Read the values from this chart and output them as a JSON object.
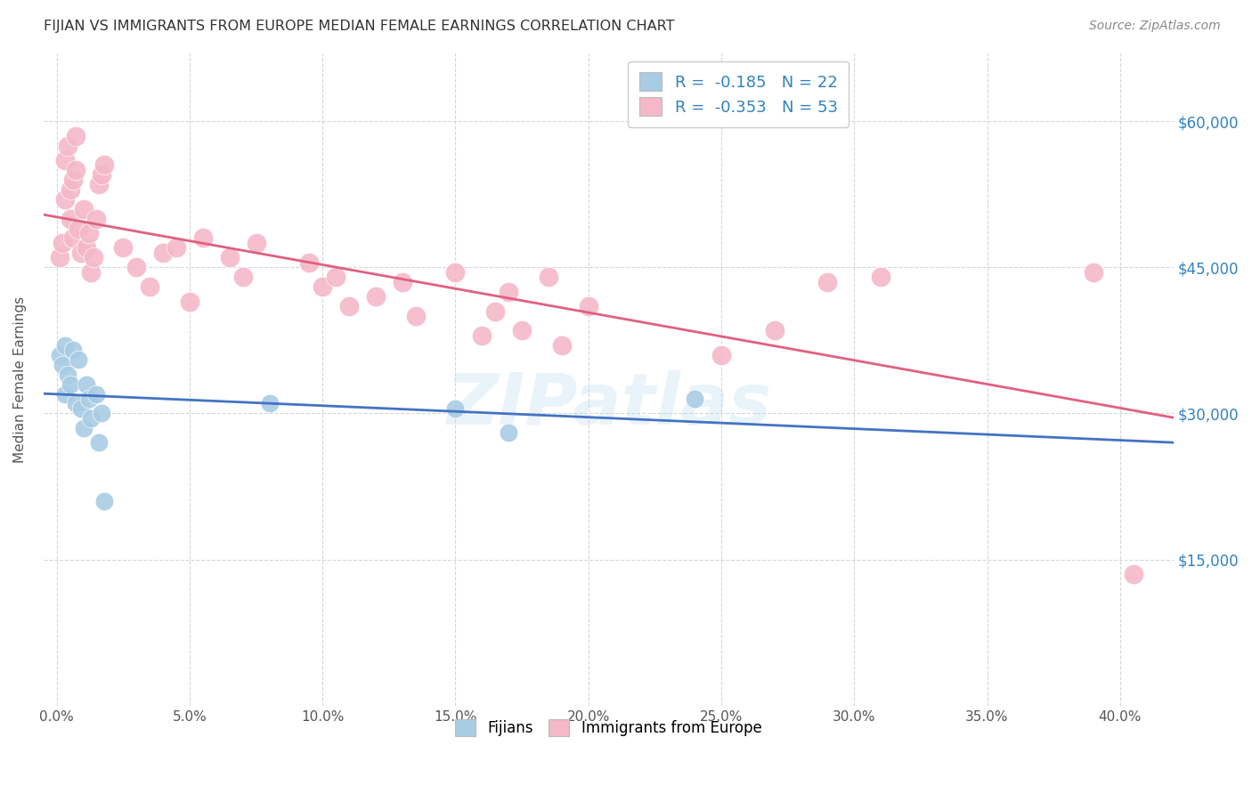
{
  "title": "FIJIAN VS IMMIGRANTS FROM EUROPE MEDIAN FEMALE EARNINGS CORRELATION CHART",
  "source": "Source: ZipAtlas.com",
  "xlabel_ticks": [
    "0.0%",
    "5.0%",
    "10.0%",
    "15.0%",
    "20.0%",
    "25.0%",
    "30.0%",
    "35.0%",
    "40.0%"
  ],
  "xlabel_vals": [
    0.0,
    0.05,
    0.1,
    0.15,
    0.2,
    0.25,
    0.3,
    0.35,
    0.4
  ],
  "ylabel": "Median Female Earnings",
  "ylabel_ticks": [
    "$60,000",
    "$45,000",
    "$30,000",
    "$15,000"
  ],
  "ylabel_vals": [
    60000,
    45000,
    30000,
    15000
  ],
  "ylim": [
    0,
    67000
  ],
  "xlim": [
    -0.005,
    0.42
  ],
  "watermark": "ZIPatlas",
  "legend_R_blue": "-0.185",
  "legend_N_blue": "22",
  "legend_R_pink": "-0.353",
  "legend_N_pink": "53",
  "blue_color": "#a8cce4",
  "pink_color": "#f4b8c8",
  "blue_line_color": "#4472c4",
  "pink_line_color": "#e06080",
  "fijian_x": [
    0.001,
    0.002,
    0.003,
    0.003,
    0.004,
    0.005,
    0.006,
    0.007,
    0.008,
    0.009,
    0.01,
    0.011,
    0.012,
    0.013,
    0.015,
    0.016,
    0.017,
    0.018,
    0.08,
    0.15,
    0.17,
    0.24
  ],
  "fijian_y": [
    36000,
    35000,
    37000,
    32000,
    34000,
    33000,
    36500,
    31000,
    35500,
    30500,
    28500,
    33000,
    31500,
    29500,
    32000,
    27000,
    30000,
    21000,
    31000,
    30500,
    28000,
    31500
  ],
  "europe_x": [
    0.001,
    0.002,
    0.003,
    0.003,
    0.004,
    0.005,
    0.005,
    0.006,
    0.006,
    0.007,
    0.007,
    0.008,
    0.009,
    0.01,
    0.011,
    0.012,
    0.013,
    0.014,
    0.015,
    0.016,
    0.017,
    0.018,
    0.025,
    0.03,
    0.035,
    0.04,
    0.045,
    0.05,
    0.055,
    0.065,
    0.07,
    0.075,
    0.095,
    0.1,
    0.105,
    0.11,
    0.12,
    0.13,
    0.135,
    0.15,
    0.16,
    0.165,
    0.17,
    0.175,
    0.185,
    0.19,
    0.2,
    0.25,
    0.27,
    0.29,
    0.31,
    0.39,
    0.405
  ],
  "europe_y": [
    46000,
    47500,
    56000,
    52000,
    57500,
    50000,
    53000,
    48000,
    54000,
    55000,
    58500,
    49000,
    46500,
    51000,
    47000,
    48500,
    44500,
    46000,
    50000,
    53500,
    54500,
    55500,
    47000,
    45000,
    43000,
    46500,
    47000,
    41500,
    48000,
    46000,
    44000,
    47500,
    45500,
    43000,
    44000,
    41000,
    42000,
    43500,
    40000,
    44500,
    38000,
    40500,
    42500,
    38500,
    44000,
    37000,
    41000,
    36000,
    38500,
    43500,
    44000,
    44500,
    13500
  ]
}
